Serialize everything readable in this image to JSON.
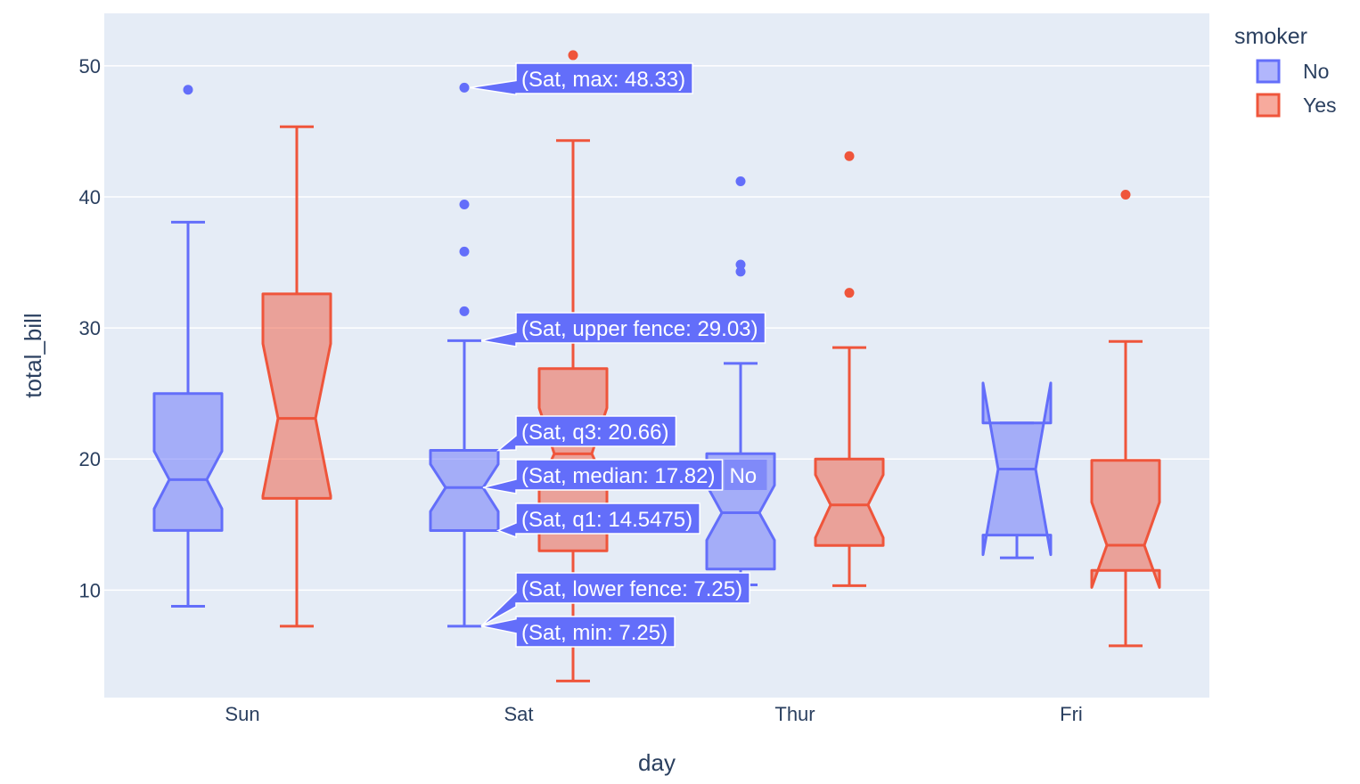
{
  "chart_data": {
    "type": "box",
    "xlabel": "day",
    "ylabel": "total_bill",
    "categories": [
      "Sun",
      "Sat",
      "Thur",
      "Fri"
    ],
    "ylim": [
      1.8,
      54
    ],
    "yticks": [
      10,
      20,
      30,
      40,
      50
    ],
    "grid": true,
    "notched": true,
    "legend": {
      "title": "smoker",
      "position": "top-right"
    },
    "colors": {
      "plot_bg": "#e5ecf6",
      "No": "#636efa",
      "Yes": "#ef553b"
    },
    "series": [
      {
        "name": "No",
        "boxes": [
          {
            "category": "Sun",
            "min": 8.77,
            "q1": 14.55,
            "median": 18.43,
            "q3": 25.0,
            "max": 38.07,
            "notch_low": 16.2,
            "notch_high": 20.6,
            "outliers": [
              48.17
            ]
          },
          {
            "category": "Sat",
            "min": 7.25,
            "q1": 14.5475,
            "median": 17.82,
            "q3": 20.66,
            "max": 29.03,
            "notch_low": 16.0,
            "notch_high": 19.6,
            "outliers": [
              31.27,
              35.83,
              39.42,
              48.33
            ]
          },
          {
            "category": "Thur",
            "min": 10.4,
            "q1": 11.6,
            "median": 15.9,
            "q3": 20.4,
            "max": 27.3,
            "notch_low": 13.8,
            "notch_high": 18.0,
            "outliers": [
              34.3,
              34.83,
              41.19
            ]
          },
          {
            "category": "Fri",
            "min": 12.46,
            "q1": 14.2,
            "median": 19.23,
            "q3": 22.75,
            "max": 22.75,
            "notch_low": 12.7,
            "notch_high": 25.8,
            "outliers": []
          }
        ]
      },
      {
        "name": "Yes",
        "boxes": [
          {
            "category": "Sun",
            "min": 7.25,
            "q1": 17.0,
            "median": 23.1,
            "q3": 32.6,
            "max": 45.35,
            "notch_low": 17.2,
            "notch_high": 28.8,
            "outliers": []
          },
          {
            "category": "Sat",
            "min": 3.07,
            "q1": 13.0,
            "median": 20.4,
            "q3": 26.9,
            "max": 44.3,
            "notch_low": 17.9,
            "notch_high": 23.9,
            "outliers": [
              50.81
            ]
          },
          {
            "category": "Thur",
            "min": 10.34,
            "q1": 13.4,
            "median": 16.5,
            "q3": 20.0,
            "max": 28.5,
            "notch_low": 14.0,
            "notch_high": 18.8,
            "outliers": [
              32.68,
              43.11
            ]
          },
          {
            "category": "Fri",
            "min": 5.75,
            "q1": 11.5,
            "median": 13.42,
            "q3": 19.9,
            "max": 28.97,
            "notch_low": 10.2,
            "notch_high": 16.7,
            "outliers": [
              40.17
            ]
          }
        ]
      }
    ],
    "hover": {
      "category": "Sat",
      "series": "No",
      "labels": [
        {
          "text": "(Sat, max: 48.33)",
          "value": 48.33
        },
        {
          "text": "(Sat, upper fence: 29.03)",
          "value": 29.03
        },
        {
          "text": "(Sat, q3: 20.66)",
          "value": 20.66
        },
        {
          "text": "(Sat, median: 17.82)",
          "value": 17.82
        },
        {
          "text": "(Sat, q1: 14.5475)",
          "value": 14.5475
        },
        {
          "text": "(Sat, lower fence: 7.25)",
          "value": 7.25
        },
        {
          "text": "(Sat, min: 7.25)",
          "value": 7.25
        }
      ],
      "trace_name": "No"
    }
  }
}
